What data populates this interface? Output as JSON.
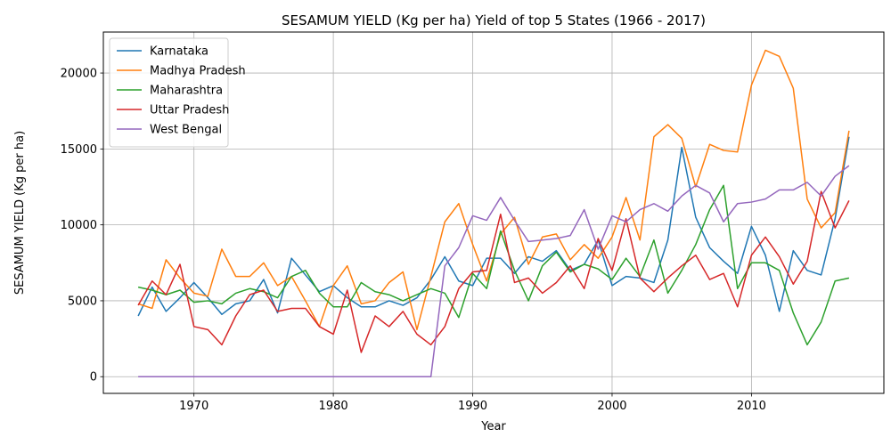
{
  "chart_data": {
    "type": "line",
    "title": "SESAMUM YIELD (Kg per ha) Yield of top 5 States (1966 - 2017)",
    "xlabel": "Year",
    "ylabel": "SESAMUM YIELD (Kg per ha)",
    "xlim": [
      1963.5,
      2019.5
    ],
    "ylim": [
      -1100,
      22700
    ],
    "xticks": [
      1970,
      1980,
      1990,
      2000,
      2010
    ],
    "yticks": [
      0,
      5000,
      10000,
      15000,
      20000
    ],
    "grid": true,
    "legend_position": "top-left",
    "x": [
      1966,
      1967,
      1968,
      1969,
      1970,
      1971,
      1972,
      1973,
      1974,
      1975,
      1976,
      1977,
      1978,
      1979,
      1980,
      1981,
      1982,
      1983,
      1984,
      1985,
      1986,
      1987,
      1988,
      1989,
      1990,
      1991,
      1992,
      1993,
      1994,
      1995,
      1996,
      1997,
      1998,
      1999,
      2000,
      2001,
      2002,
      2003,
      2004,
      2005,
      2006,
      2007,
      2008,
      2009,
      2010,
      2011,
      2012,
      2013,
      2014,
      2015,
      2016,
      2017
    ],
    "series": [
      {
        "name": "Karnataka",
        "color": "#1f77b4",
        "values": [
          4000,
          5900,
          4300,
          5200,
          6200,
          5200,
          4100,
          4800,
          5000,
          6400,
          4200,
          7800,
          6700,
          5600,
          6000,
          5200,
          4600,
          4600,
          5000,
          4700,
          5200,
          6400,
          7900,
          6300,
          6000,
          7800,
          7800,
          6800,
          7900,
          7600,
          8300,
          7000,
          7400,
          9000,
          6000,
          6600,
          6500,
          6200,
          9000,
          15100,
          10500,
          8500,
          7600,
          6800,
          9900,
          8000,
          4300,
          8300,
          7000,
          6700,
          10400,
          15800
        ]
      },
      {
        "name": "Madhya Pradesh",
        "color": "#ff7f0e",
        "values": [
          4800,
          4500,
          7700,
          6500,
          5500,
          5300,
          8400,
          6600,
          6600,
          7500,
          6000,
          6600,
          5000,
          3300,
          6000,
          7300,
          4800,
          5000,
          6200,
          6900,
          3100,
          6600,
          10200,
          11400,
          8700,
          6300,
          9400,
          10500,
          7400,
          9200,
          9400,
          7700,
          8700,
          7800,
          9200,
          11800,
          9000,
          15800,
          16600,
          15700,
          12500,
          15300,
          14900,
          14800,
          19200,
          21500,
          21100,
          19000,
          11700,
          9800,
          10800,
          16200
        ]
      },
      {
        "name": "Maharashtra",
        "color": "#2ca02c",
        "values": [
          5900,
          5700,
          5400,
          5700,
          4900,
          5000,
          4800,
          5500,
          5800,
          5600,
          5200,
          6600,
          7000,
          5500,
          4600,
          4600,
          6200,
          5600,
          5400,
          5000,
          5400,
          5800,
          5500,
          3900,
          6800,
          5800,
          9600,
          7000,
          5000,
          7300,
          8200,
          6900,
          7400,
          7100,
          6400,
          7800,
          6600,
          9000,
          5500,
          7000,
          8700,
          11000,
          12600,
          5800,
          7500,
          7500,
          7000,
          4200,
          2100,
          3600,
          6300,
          6500
        ]
      },
      {
        "name": "Uttar Pradesh",
        "color": "#d62728",
        "values": [
          4700,
          6300,
          5400,
          7400,
          3300,
          3100,
          2100,
          4000,
          5400,
          5700,
          4300,
          4500,
          4500,
          3300,
          2800,
          5700,
          1600,
          4000,
          3300,
          4300,
          2800,
          2100,
          3300,
          5800,
          6900,
          7000,
          10700,
          6200,
          6500,
          5500,
          6200,
          7300,
          5800,
          9100,
          7000,
          10400,
          6500,
          5600,
          6500,
          7300,
          8000,
          6400,
          6800,
          4600,
          8000,
          9200,
          7900,
          6100,
          7600,
          12200,
          9800,
          11600
        ]
      },
      {
        "name": "West Bengal",
        "color": "#9467bd",
        "values": [
          0,
          0,
          0,
          0,
          0,
          0,
          0,
          0,
          0,
          0,
          0,
          0,
          0,
          0,
          0,
          0,
          0,
          0,
          0,
          0,
          0,
          0,
          7300,
          8500,
          10600,
          10300,
          11800,
          10300,
          8900,
          9000,
          9100,
          9300,
          11000,
          8400,
          10600,
          10200,
          11000,
          11400,
          10900,
          11900,
          12600,
          12100,
          10200,
          11400,
          11500,
          11700,
          12300,
          12300,
          12800,
          11900,
          13200,
          13900
        ]
      }
    ]
  }
}
